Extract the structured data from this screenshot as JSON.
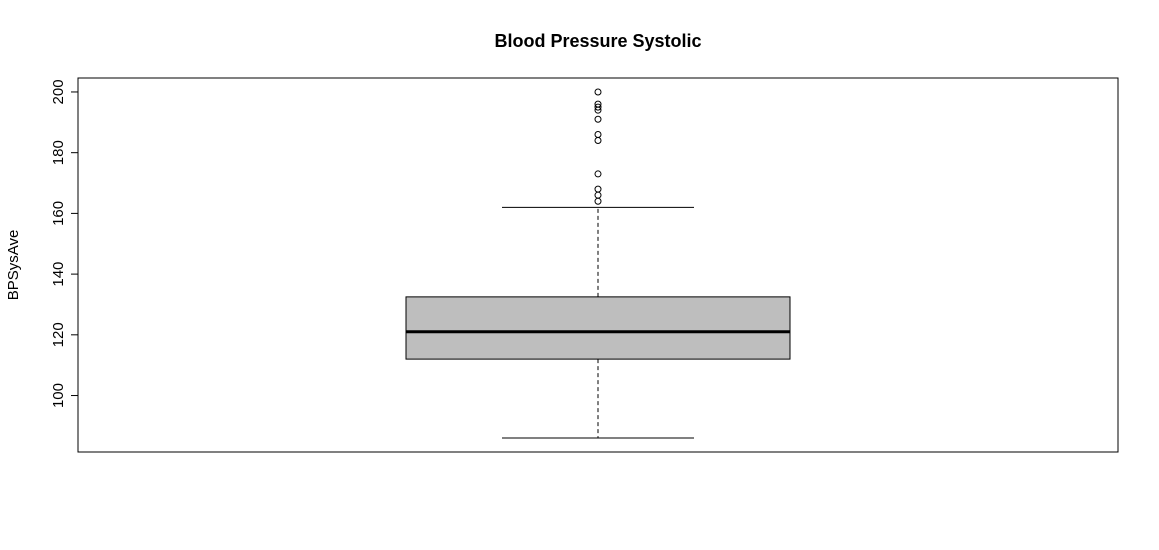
{
  "chart_data": {
    "type": "boxplot",
    "title": "Blood Pressure Systolic",
    "xlabel": "",
    "ylabel": "BPSysAve",
    "ylim": [
      81.4,
      204.6
    ],
    "y_ticks": [
      100,
      120,
      140,
      160,
      180,
      200
    ],
    "grid": false,
    "box": {
      "whisker_low": 86,
      "q1": 112,
      "median": 121,
      "q3": 132.5,
      "whisker_high": 162,
      "outliers": [
        164,
        166,
        168,
        173,
        184,
        186,
        191,
        194,
        195,
        196,
        200
      ]
    },
    "colors": {
      "box_fill": "#bebebe",
      "stroke": "#000000"
    }
  }
}
